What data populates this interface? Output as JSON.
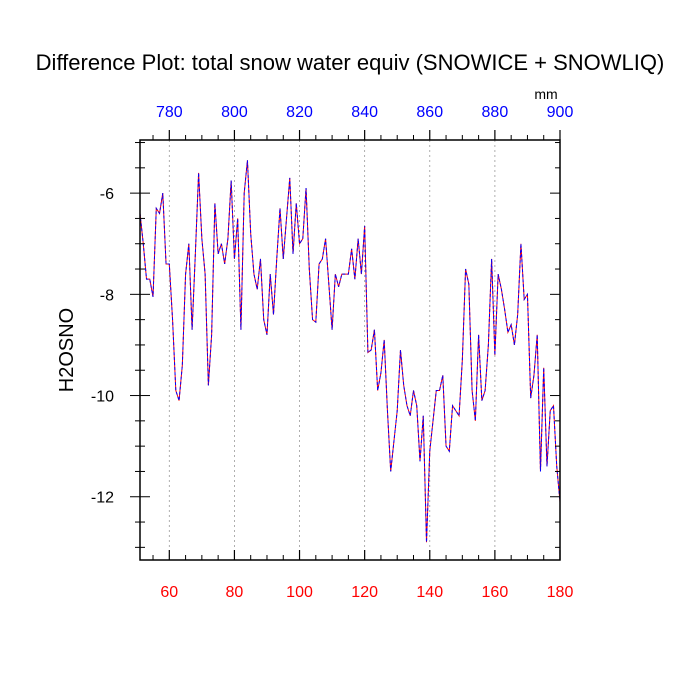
{
  "chart_data": {
    "type": "line",
    "title": "Difference Plot: total snow water equiv (SNOWICE + SNOWLIQ)",
    "ylabel": "H2OSNO",
    "units_label": "mm",
    "xlim": [
      51,
      180
    ],
    "ylim": [
      -13.25,
      -4.95
    ],
    "bottom_ticks": [
      60,
      80,
      100,
      120,
      140,
      160,
      180
    ],
    "top_ticks": [
      780,
      800,
      820,
      840,
      860,
      880,
      900
    ],
    "top_axis_offset": 720,
    "y_ticks": [
      -6,
      -8,
      -10,
      -12
    ],
    "y_minor_step": 0.5,
    "x_minor_step": 5,
    "grid": "vertical dotted",
    "colors": {
      "line_a": "#ff0000",
      "line_b": "#0000ff",
      "bottom_ticks": "#ff0000",
      "top_ticks": "#0000ff"
    },
    "series": [
      {
        "name": "H2OSNO difference",
        "x": [
          51,
          52,
          53,
          54,
          55,
          56,
          57,
          58,
          59,
          60,
          61,
          62,
          63,
          64,
          65,
          66,
          67,
          68,
          69,
          70,
          71,
          72,
          73,
          74,
          75,
          76,
          77,
          78,
          79,
          80,
          81,
          82,
          83,
          84,
          85,
          86,
          87,
          88,
          89,
          90,
          91,
          92,
          93,
          94,
          95,
          96,
          97,
          98,
          99,
          100,
          101,
          102,
          103,
          104,
          105,
          106,
          107,
          108,
          109,
          110,
          111,
          112,
          113,
          114,
          115,
          116,
          117,
          118,
          119,
          120,
          121,
          122,
          123,
          124,
          125,
          126,
          127,
          128,
          129,
          130,
          131,
          132,
          133,
          134,
          135,
          136,
          137,
          138,
          139,
          140,
          141,
          142,
          143,
          144,
          145,
          146,
          147,
          148,
          149,
          150,
          151,
          152,
          153,
          154,
          155,
          156,
          157,
          158,
          159,
          160,
          161,
          162,
          163,
          164,
          165,
          166,
          167,
          168,
          169,
          170,
          171,
          172,
          173,
          174,
          175,
          176,
          177,
          178,
          179,
          180
        ],
        "values": [
          -6.4,
          -7.0,
          -7.7,
          -7.7,
          -8.05,
          -6.3,
          -6.4,
          -6.0,
          -7.4,
          -7.4,
          -8.5,
          -9.9,
          -10.1,
          -9.4,
          -7.6,
          -7.0,
          -8.7,
          -7.2,
          -5.6,
          -6.9,
          -7.6,
          -9.8,
          -8.8,
          -6.2,
          -7.2,
          -7.0,
          -7.4,
          -6.9,
          -5.75,
          -7.3,
          -6.5,
          -8.7,
          -6.0,
          -5.35,
          -6.8,
          -7.6,
          -7.9,
          -7.3,
          -8.5,
          -8.8,
          -7.6,
          -8.4,
          -7.3,
          -6.3,
          -7.3,
          -6.5,
          -5.7,
          -7.2,
          -6.2,
          -7.0,
          -6.9,
          -5.9,
          -7.5,
          -8.5,
          -8.55,
          -7.4,
          -7.3,
          -6.9,
          -7.8,
          -8.7,
          -7.6,
          -7.85,
          -7.6,
          -7.6,
          -7.6,
          -7.1,
          -7.7,
          -6.9,
          -7.6,
          -6.65,
          -9.15,
          -9.1,
          -8.7,
          -9.9,
          -9.55,
          -8.9,
          -10.3,
          -11.5,
          -10.9,
          -10.3,
          -9.1,
          -9.8,
          -10.2,
          -10.4,
          -9.9,
          -10.2,
          -11.3,
          -10.4,
          -12.9,
          -11.1,
          -10.5,
          -9.9,
          -9.9,
          -9.6,
          -11.0,
          -11.1,
          -10.2,
          -10.3,
          -10.4,
          -9.3,
          -7.5,
          -7.8,
          -9.9,
          -10.5,
          -8.8,
          -10.1,
          -9.9,
          -9.0,
          -7.3,
          -9.2,
          -7.6,
          -7.9,
          -8.3,
          -8.75,
          -8.6,
          -9.0,
          -8.4,
          -7.0,
          -8.1,
          -8.0,
          -10.05,
          -9.6,
          -8.8,
          -11.5,
          -9.45,
          -11.4,
          -10.3,
          -10.2,
          -11.4,
          -12.1
        ]
      }
    ]
  }
}
